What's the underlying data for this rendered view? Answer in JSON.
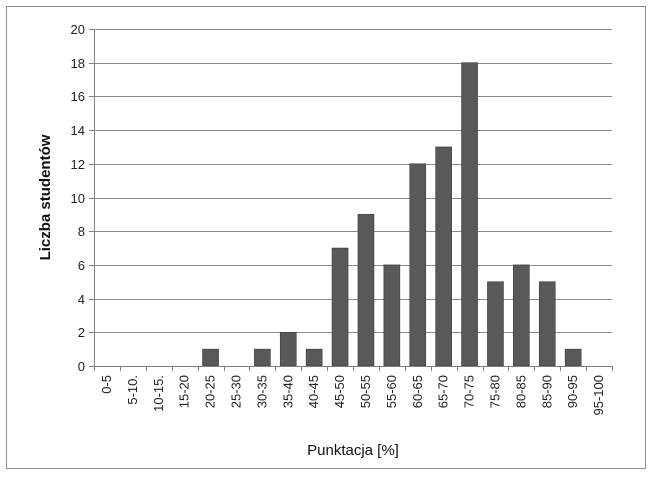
{
  "chart_data": {
    "type": "bar",
    "categories": [
      "0-5",
      "5-10.",
      "10-15.",
      "15-20",
      "20-25",
      "25-30",
      "30-35",
      "35-40",
      "40-45",
      "45-50",
      "50-55",
      "55-60",
      "60-65",
      "65-70",
      "70-75",
      "75-80",
      "80-85",
      "85-90",
      "90-95",
      "95-100"
    ],
    "values": [
      0,
      0,
      0,
      0,
      1,
      0,
      1,
      2,
      1,
      7,
      9,
      6,
      12,
      13,
      18,
      5,
      6,
      5,
      1,
      0
    ],
    "title": "",
    "xlabel": "Punktacja [%]",
    "ylabel": "Liczba studentów",
    "ylim": [
      0,
      20
    ],
    "yticks": [
      0,
      2,
      4,
      6,
      8,
      10,
      12,
      14,
      16,
      18,
      20
    ],
    "grid": true,
    "legend": "none",
    "colors": {
      "bar": "#595959",
      "bar_edge": "#3a3a3a",
      "grid": "#8c8c8c",
      "axis": "#7f7f7f"
    }
  }
}
